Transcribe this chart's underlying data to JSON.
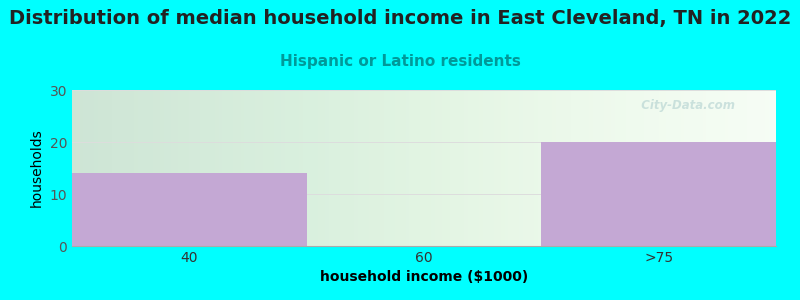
{
  "title": "Distribution of median household income in East Cleveland, TN in 2022",
  "subtitle": "Hispanic or Latino residents",
  "categories": [
    "40",
    "60",
    ">75"
  ],
  "values": [
    14,
    0,
    20
  ],
  "bar_color": "#C4A8D4",
  "background_color": "#00FFFF",
  "ylabel": "households",
  "xlabel": "household income ($1000)",
  "ylim": [
    0,
    30
  ],
  "yticks": [
    0,
    10,
    20,
    30
  ],
  "title_fontsize": 14,
  "subtitle_fontsize": 11,
  "subtitle_color": "#009999",
  "title_color": "#222222",
  "watermark": "  City-Data.com",
  "watermark_color": "#AACCCC",
  "watermark_alpha": 0.55,
  "bar_edges": [
    0,
    1,
    2,
    3
  ],
  "grid_color": "#DDDDDD",
  "plot_bg": "#FAFFFA"
}
